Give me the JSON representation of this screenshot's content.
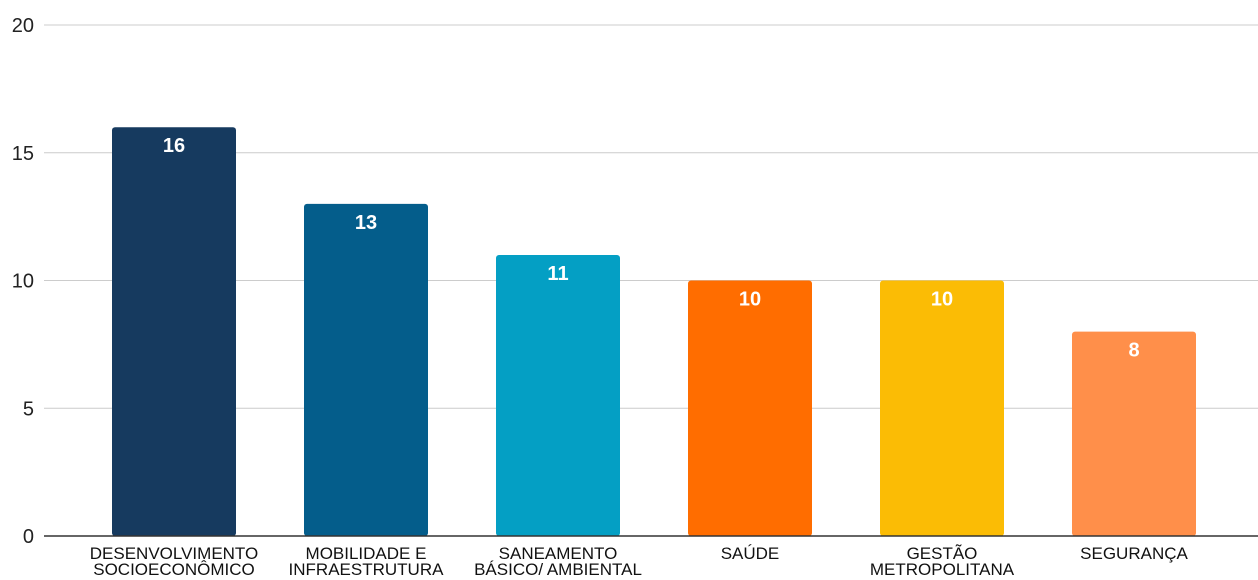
{
  "chart_data": {
    "type": "bar",
    "categories": [
      [
        "DESENVOLVIMENTO",
        "SOCIOECONÔMICO"
      ],
      [
        "MOBILIDADE E",
        "INFRAESTRUTURA"
      ],
      [
        "SANEAMENTO",
        "BÁSICO/ AMBIENTAL"
      ],
      [
        "SAÚDE"
      ],
      [
        "GESTÃO",
        "METROPOLITANA"
      ],
      [
        "SEGURANÇA"
      ]
    ],
    "values": [
      16,
      13,
      11,
      10,
      10,
      8
    ],
    "colors": [
      "#163A5F",
      "#045D8B",
      "#049FC4",
      "#FF6D00",
      "#FBBC05",
      "#FF8F4A"
    ],
    "title": "",
    "xlabel": "",
    "ylabel": "",
    "ylim": [
      0,
      20
    ],
    "yticks": [
      0,
      5,
      10,
      15,
      20
    ],
    "grid": true,
    "data_labels": true
  }
}
